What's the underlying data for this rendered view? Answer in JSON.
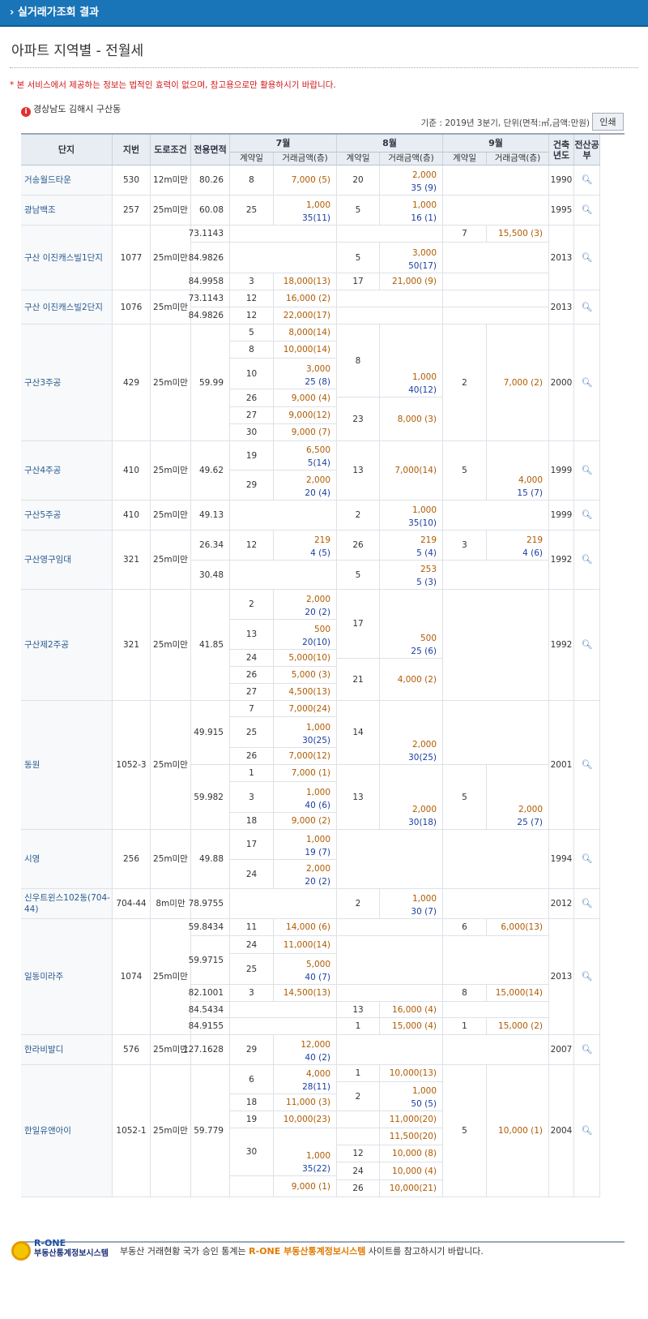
{
  "topbar": {
    "title": "› 실거래가조회 결과"
  },
  "page": {
    "title": "아파트 지역별 - 전월세",
    "notice": "* 본 서비스에서 제공하는 정보는 법적인 효력이 없으며, 참고용으로만 활용하시기 바랍니다.",
    "location": "경상남도 김해시 구산동",
    "basis": "기준 : 2019년 3분기, 단위(면적:㎡,금액:만원)",
    "print_label": "인쇄"
  },
  "table": {
    "headers": {
      "complex": "단지",
      "lot": "지번",
      "road": "도로조건",
      "area": "전용면적",
      "built": "건축년도",
      "map": "전산공부",
      "months": [
        "7월",
        "8월",
        "9월"
      ],
      "day": "계약일",
      "amount": "거래금액(층)"
    }
  },
  "complexes": [
    {
      "name": "거송월드타운",
      "lot": "530",
      "road": "12m미만",
      "built": "1990",
      "areas": [
        {
          "a": "80.26",
          "jul": [
            [
              "8",
              "7,000 (5)"
            ]
          ],
          "aug": [
            [
              "20",
              "2,000|35 (9)"
            ]
          ],
          "sep": []
        }
      ]
    },
    {
      "name": "광남백조",
      "lot": "257",
      "road": "25m미만",
      "built": "1995",
      "areas": [
        {
          "a": "60.08",
          "jul": [
            [
              "25",
              "1,000|35(11)"
            ]
          ],
          "aug": [
            [
              "5",
              "1,000|16 (1)"
            ]
          ],
          "sep": []
        }
      ]
    },
    {
      "name": "구산 이진캐스빌1단지",
      "lot": "1077",
      "road": "25m미만",
      "built": "2013",
      "areas": [
        {
          "a": "73.1143",
          "jul": [],
          "aug": [],
          "sep": [
            [
              "7",
              "15,500 (3)"
            ]
          ]
        },
        {
          "a": "84.9826",
          "jul": [],
          "aug": [
            [
              "5",
              "3,000|50(17)"
            ]
          ],
          "sep": []
        },
        {
          "a": "84.9958",
          "jul": [
            [
              "3",
              "18,000(13)"
            ]
          ],
          "aug": [
            [
              "17",
              "21,000 (9)"
            ]
          ],
          "sep": []
        }
      ]
    },
    {
      "name": "구산 이진캐스빌2단지",
      "lot": "1076",
      "road": "25m미만",
      "built": "2013",
      "areas": [
        {
          "a": "73.1143",
          "jul": [
            [
              "12",
              "16,000 (2)"
            ]
          ],
          "aug": [],
          "sep": []
        },
        {
          "a": "84.9826",
          "jul": [
            [
              "12",
              "22,000(17)"
            ]
          ],
          "aug": [],
          "sep": []
        }
      ]
    },
    {
      "name": "구산3주공",
      "lot": "429",
      "road": "25m미만",
      "built": "2000",
      "areas": [
        {
          "a": "59.99",
          "jul": [
            [
              "5",
              "8,000(14)"
            ],
            [
              "8",
              "10,000(14)"
            ],
            [
              "10",
              "3,000|25 (8)"
            ],
            [
              "26",
              "9,000 (4)"
            ],
            [
              "27",
              "9,000(12)"
            ],
            [
              "30",
              "9,000 (7)"
            ]
          ],
          "aug": [
            [
              "8",
              "1,000|40(12)"
            ],
            [
              "23",
              "8,000 (3)"
            ]
          ],
          "sep": [
            [
              "2",
              "7,000 (2)"
            ]
          ]
        }
      ]
    },
    {
      "name": "구산4주공",
      "lot": "410",
      "road": "25m미만",
      "built": "1999",
      "areas": [
        {
          "a": "49.62",
          "jul": [
            [
              "19",
              "6,500|5(14)"
            ],
            [
              "29",
              "2,000|20 (4)"
            ]
          ],
          "aug": [
            [
              "13",
              "7,000(14)"
            ]
          ],
          "sep": [
            [
              "5",
              "4,000|15 (7)"
            ]
          ]
        }
      ]
    },
    {
      "name": "구산5주공",
      "lot": "410",
      "road": "25m미만",
      "built": "1999",
      "areas": [
        {
          "a": "49.13",
          "jul": [],
          "aug": [
            [
              "2",
              "1,000|35(10)"
            ]
          ],
          "sep": []
        }
      ]
    },
    {
      "name": "구산영구임대",
      "lot": "321",
      "road": "25m미만",
      "built": "1992",
      "areas": [
        {
          "a": "26.34",
          "jul": [
            [
              "12",
              "219|4 (5)"
            ]
          ],
          "aug": [
            [
              "26",
              "219|5 (4)"
            ]
          ],
          "sep": [
            [
              "3",
              "219|4 (6)"
            ]
          ]
        },
        {
          "a": "30.48",
          "jul": [],
          "aug": [
            [
              "5",
              "253|5 (3)"
            ]
          ],
          "sep": []
        }
      ]
    },
    {
      "name": "구산제2주공",
      "lot": "321",
      "road": "25m미만",
      "built": "1992",
      "areas": [
        {
          "a": "41.85",
          "jul": [
            [
              "2",
              "2,000|20 (2)"
            ],
            [
              "13",
              "500|20(10)"
            ],
            [
              "24",
              "5,000(10)"
            ],
            [
              "26",
              "5,000 (3)"
            ],
            [
              "27",
              "4,500(13)"
            ]
          ],
          "aug": [
            [
              "17",
              "500|25 (6)"
            ],
            [
              "21",
              "4,000 (2)"
            ]
          ],
          "sep": []
        }
      ]
    },
    {
      "name": "동원",
      "lot": "1052-3",
      "road": "25m미만",
      "built": "2001",
      "areas": [
        {
          "a": "49.915",
          "jul": [
            [
              "7",
              "7,000(24)"
            ],
            [
              "25",
              "1,000|30(25)"
            ],
            [
              "26",
              "7,000(12)"
            ]
          ],
          "aug": [
            [
              "14",
              "2,000|30(25)"
            ]
          ],
          "sep": []
        },
        {
          "a": "59.982",
          "jul": [
            [
              "1",
              "7,000 (1)"
            ],
            [
              "3",
              "1,000|40 (6)"
            ],
            [
              "18",
              "9,000 (2)"
            ]
          ],
          "aug": [
            [
              "13",
              "2,000|30(18)"
            ]
          ],
          "sep": [
            [
              "5",
              "2,000|25 (7)"
            ]
          ]
        }
      ]
    },
    {
      "name": "시영",
      "lot": "256",
      "road": "25m미만",
      "built": "1994",
      "areas": [
        {
          "a": "49.88",
          "jul": [
            [
              "17",
              "1,000|19 (7)"
            ],
            [
              "24",
              "2,000|20 (2)"
            ]
          ],
          "aug": [],
          "sep": []
        }
      ]
    },
    {
      "name": "신우트윈스102동(704-44)",
      "lot": "704-44",
      "road": "8m미만",
      "built": "2012",
      "areas": [
        {
          "a": "78.9755",
          "jul": [],
          "aug": [
            [
              "2",
              "1,000|30 (7)"
            ]
          ],
          "sep": []
        }
      ]
    },
    {
      "name": "일동미라주",
      "lot": "1074",
      "road": "25m미만",
      "built": "2013",
      "areas": [
        {
          "a": "59.8434",
          "jul": [
            [
              "11",
              "14,000 (6)"
            ]
          ],
          "aug": [],
          "sep": [
            [
              "6",
              "6,000(13)"
            ]
          ]
        },
        {
          "a": "59.9715",
          "jul": [
            [
              "24",
              "11,000(14)"
            ],
            [
              "25",
              "5,000|40 (7)"
            ]
          ],
          "aug": [],
          "sep": []
        },
        {
          "a": "82.1001",
          "jul": [
            [
              "3",
              "14,500(13)"
            ]
          ],
          "aug": [],
          "sep": [
            [
              "8",
              "15,000(14)"
            ]
          ]
        },
        {
          "a": "84.5434",
          "jul": [],
          "aug": [
            [
              "13",
              "16,000 (4)"
            ]
          ],
          "sep": []
        },
        {
          "a": "84.9155",
          "jul": [],
          "aug": [
            [
              "1",
              "15,000 (4)"
            ]
          ],
          "sep": [
            [
              "1",
              "15,000 (2)"
            ]
          ]
        }
      ]
    },
    {
      "name": "한라비발디",
      "lot": "576",
      "road": "25m미만",
      "built": "2007",
      "areas": [
        {
          "a": "127.1628",
          "jul": [
            [
              "29",
              "12,000|40 (2)"
            ]
          ],
          "aug": [],
          "sep": []
        }
      ]
    },
    {
      "name": "한일유앤아이",
      "lot": "1052-1",
      "road": "25m미만",
      "built": "2004",
      "areas": [
        {
          "a": "59.779",
          "jul": [
            [
              "6",
              "4,000|28(11)"
            ],
            [
              "18",
              "11,000 (3)"
            ],
            [
              "19",
              "10,000(23)"
            ],
            [
              "30",
              "1,000|35(22)"
            ],
            [
              "",
              "9,000 (1)"
            ]
          ],
          "aug": [
            [
              "1",
              "10,000(13)"
            ],
            [
              "2",
              "1,000|50 (5)"
            ],
            [
              "",
              "11,000(20)"
            ],
            [
              "",
              "11,500(20)"
            ],
            [
              "12",
              "10,000 (8)"
            ],
            [
              "24",
              "10,000 (4)"
            ],
            [
              "26",
              "10,000(21)"
            ]
          ],
          "sep": [
            [
              "5",
              "10,000 (1)"
            ]
          ]
        }
      ]
    }
  ],
  "footer": {
    "brand": "R-ONE",
    "brand_sub": "부동산통계정보시스템",
    "msg_pre": "부동산 거래현황 국가 승인 통계는 ",
    "msg_hl": "R-ONE 부동산통계정보시스템",
    "msg_post": " 사이트를 참고하시기 바랍니다."
  },
  "colors": {
    "topbar": "#1a74b8",
    "deposit": "#b05a00",
    "rent": "#1a3fa0",
    "notice": "#d0181b"
  }
}
